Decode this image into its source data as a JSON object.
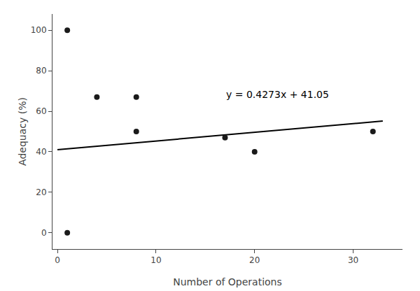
{
  "chart_data": {
    "type": "scatter",
    "xlabel": "Number of Operations",
    "ylabel": "Adequacy (%)",
    "series": [
      {
        "type": "scatter",
        "marker": "circle",
        "color": "#1a1a1a",
        "x": [
          1,
          1,
          4,
          8,
          8,
          17,
          20,
          32
        ],
        "values": [
          100,
          0,
          67,
          50,
          67,
          47,
          40,
          50
        ]
      },
      {
        "type": "line",
        "line_style": "solid",
        "color": "#000000",
        "x": [
          0,
          33
        ],
        "values": [
          41.05,
          55.1509
        ]
      }
    ],
    "annotations": [
      {
        "text": "y = 0.4273x + 41.05",
        "x": 17,
        "y": 65,
        "color": "#000000"
      }
    ],
    "xlim": [
      -0.5,
      35
    ],
    "ylim": [
      -8,
      108
    ],
    "xticks": [
      0,
      10,
      20,
      30
    ],
    "yticks": [
      0,
      20,
      40,
      60,
      80,
      100
    ],
    "grid": false
  }
}
